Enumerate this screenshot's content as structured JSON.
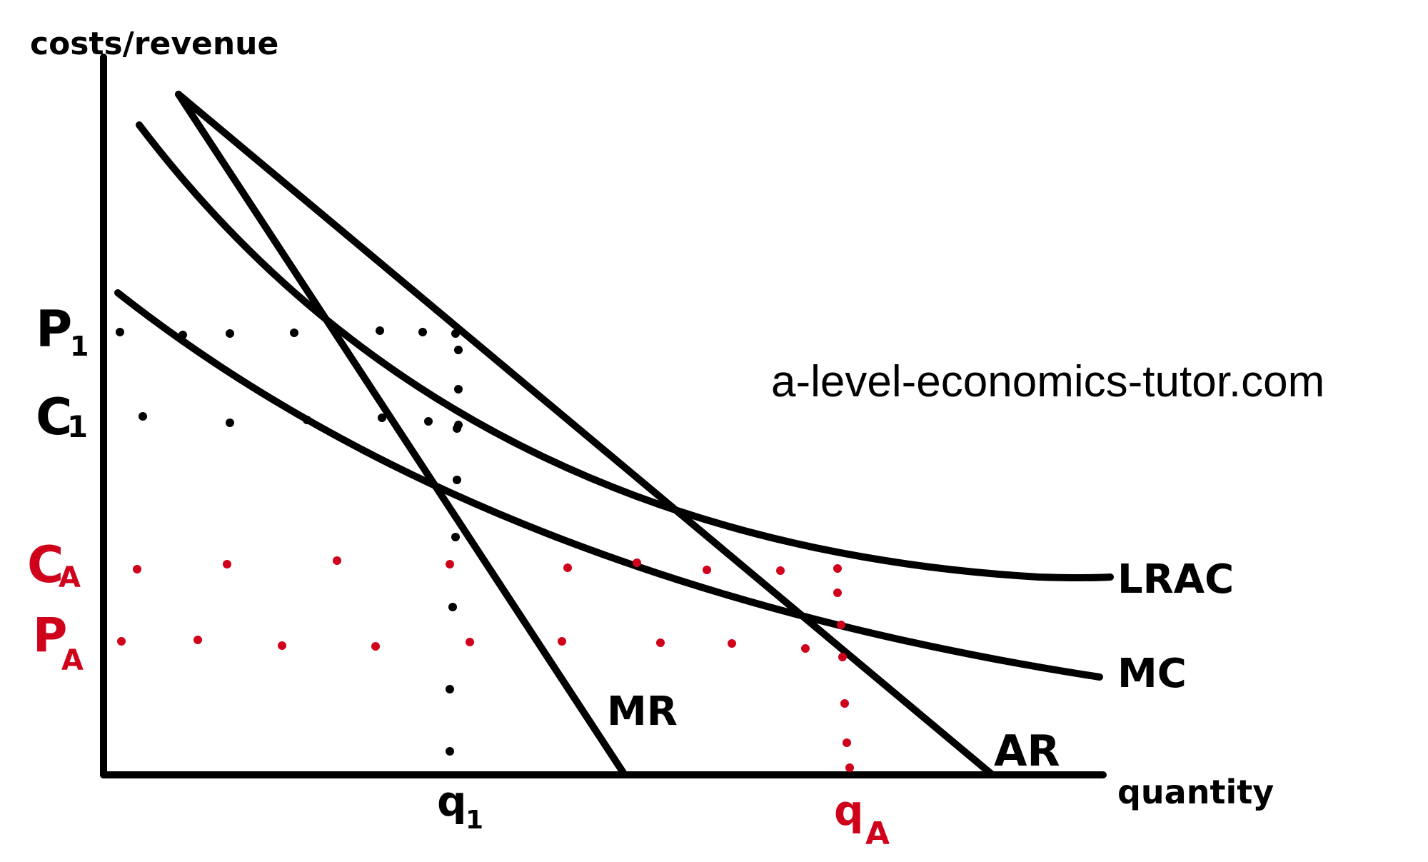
{
  "watermark": "a-level-economics-tutor.com",
  "axes": {
    "y_label": "costs/revenue",
    "x_label": "quantity"
  },
  "curves": {
    "lrac": "LRAC",
    "mc": "MC",
    "mr": "MR",
    "ar": "AR"
  },
  "price_cost_labels": {
    "p1_main": "P",
    "p1_sub": "1",
    "c1_main": "C",
    "c1_sub": "1",
    "ca_main": "C",
    "ca_sub": "A",
    "pa_main": "P",
    "pa_sub": "A"
  },
  "quantity_labels": {
    "q1_main": "q",
    "q1_sub": "1",
    "qa_main": "q",
    "qa_sub": "A"
  },
  "colors": {
    "ink": "#000000",
    "accent": "#d0021b"
  }
}
